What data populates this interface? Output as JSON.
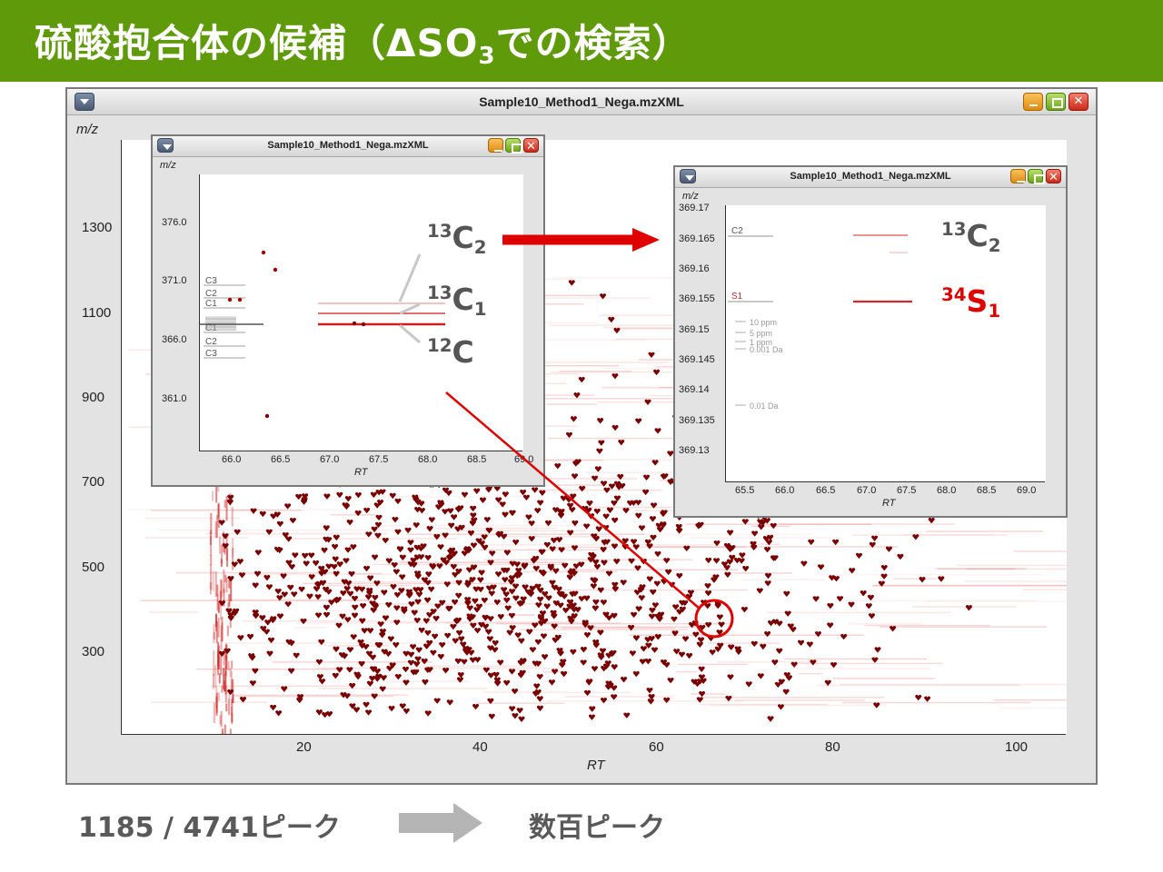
{
  "slide": {
    "title_main": "硫酸抱合体の候補（ΔSO",
    "title_sub": "3",
    "title_tail": "での検索）"
  },
  "main_window": {
    "title": "Sample10_Method1_Nega.mzXML",
    "y_axis_label": "m/z",
    "x_axis_label": "RT",
    "y_ticks": [
      "1300",
      "1100",
      "900",
      "700",
      "500",
      "300"
    ],
    "x_ticks": [
      "20",
      "40",
      "60",
      "80",
      "100"
    ]
  },
  "inset_left": {
    "title": "Sample10_Method1_Nega.mzXML",
    "y_axis_label": "m/z",
    "x_axis_label": "RT",
    "y_ticks": [
      "376.0",
      "371.0",
      "366.0",
      "361.0"
    ],
    "x_ticks": [
      "66.0",
      "66.5",
      "67.0",
      "67.5",
      "68.0",
      "68.5",
      "69.0"
    ],
    "line_labels": [
      "C3",
      "C2",
      "C1",
      "C1",
      "C2",
      "C3"
    ]
  },
  "inset_right": {
    "title": "Sample10_Method1_Nega.mzXML",
    "y_axis_label": "m/z",
    "x_axis_label": "RT",
    "y_ticks": [
      "369.17",
      "369.165",
      "369.16",
      "369.155",
      "369.15",
      "369.145",
      "369.14",
      "369.135",
      "369.13"
    ],
    "x_ticks": [
      "65.5",
      "66.0",
      "66.5",
      "67.0",
      "67.5",
      "68.0",
      "68.5",
      "69.0"
    ],
    "line_labels": [
      "C2",
      "S1"
    ],
    "tol_labels": [
      "10 ppm",
      "5 ppm",
      "1 ppm",
      "0.001 Da",
      "0.01 Da"
    ]
  },
  "annotations": {
    "c13_2_mass": "13",
    "c13_2_elem": "C",
    "c13_2_count": "2",
    "c13_1_mass": "13",
    "c13_1_elem": "C",
    "c13_1_count": "1",
    "c12_mass": "12",
    "c12_elem": "C",
    "r_c13_2_mass": "13",
    "r_c13_2_elem": "C",
    "r_c13_2_count": "2",
    "s34_mass": "34",
    "s34_elem": "S",
    "s34_count": "1"
  },
  "footer": {
    "count_text": "1185 / 4741ピーク",
    "result_text": "数百ピーク"
  },
  "colors": {
    "header_green": "#5e9a0a",
    "peak_red": "#7a0000",
    "highlight_red": "#e00000"
  }
}
